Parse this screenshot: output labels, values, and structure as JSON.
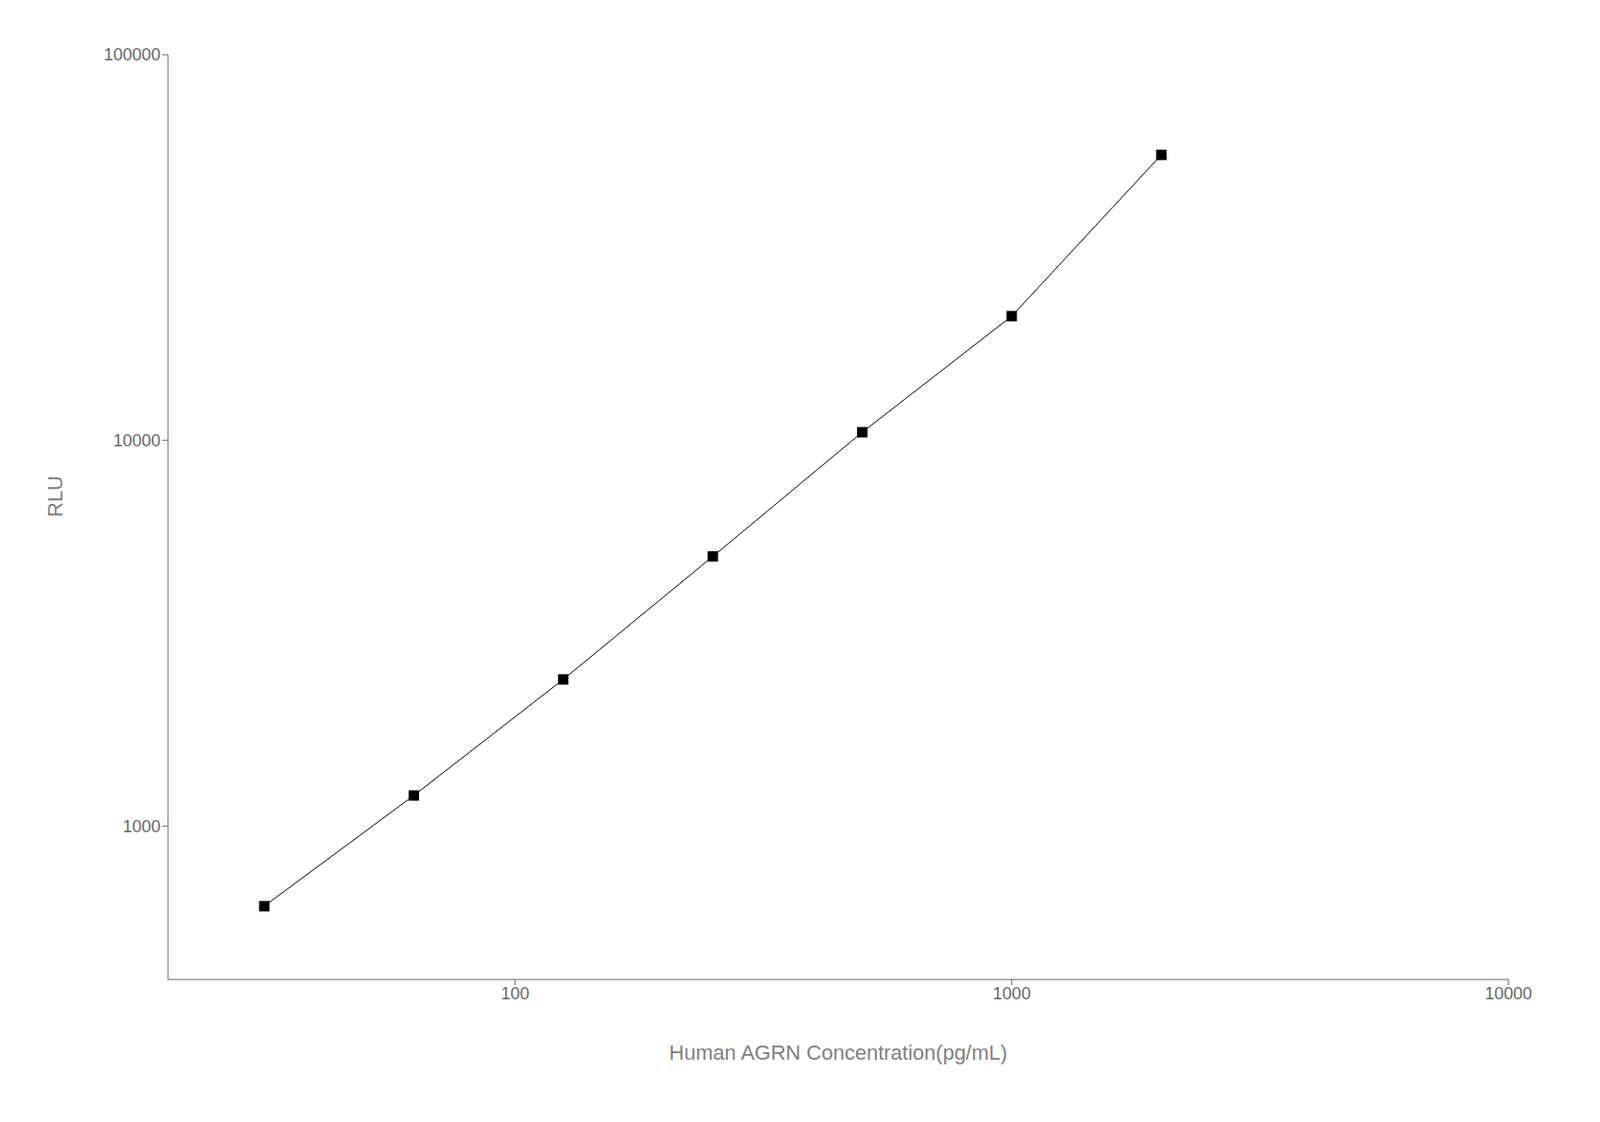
{
  "chart_data": {
    "type": "line",
    "x": [
      31.25,
      62.5,
      125,
      250,
      500,
      1000,
      2000
    ],
    "values": [
      620,
      1200,
      2400,
      5000,
      10500,
      21000,
      55000
    ],
    "xlabel": "Human AGRN Concentration(pg/mL)",
    "ylabel": "RLU",
    "xlim": [
      20,
      10000
    ],
    "ylim": [
      400,
      100000
    ],
    "xticks": [
      100,
      1000,
      10000
    ],
    "yticks": [
      1000,
      10000,
      100000
    ],
    "log": true,
    "grid": false,
    "color": "#000000",
    "marker": "square"
  }
}
